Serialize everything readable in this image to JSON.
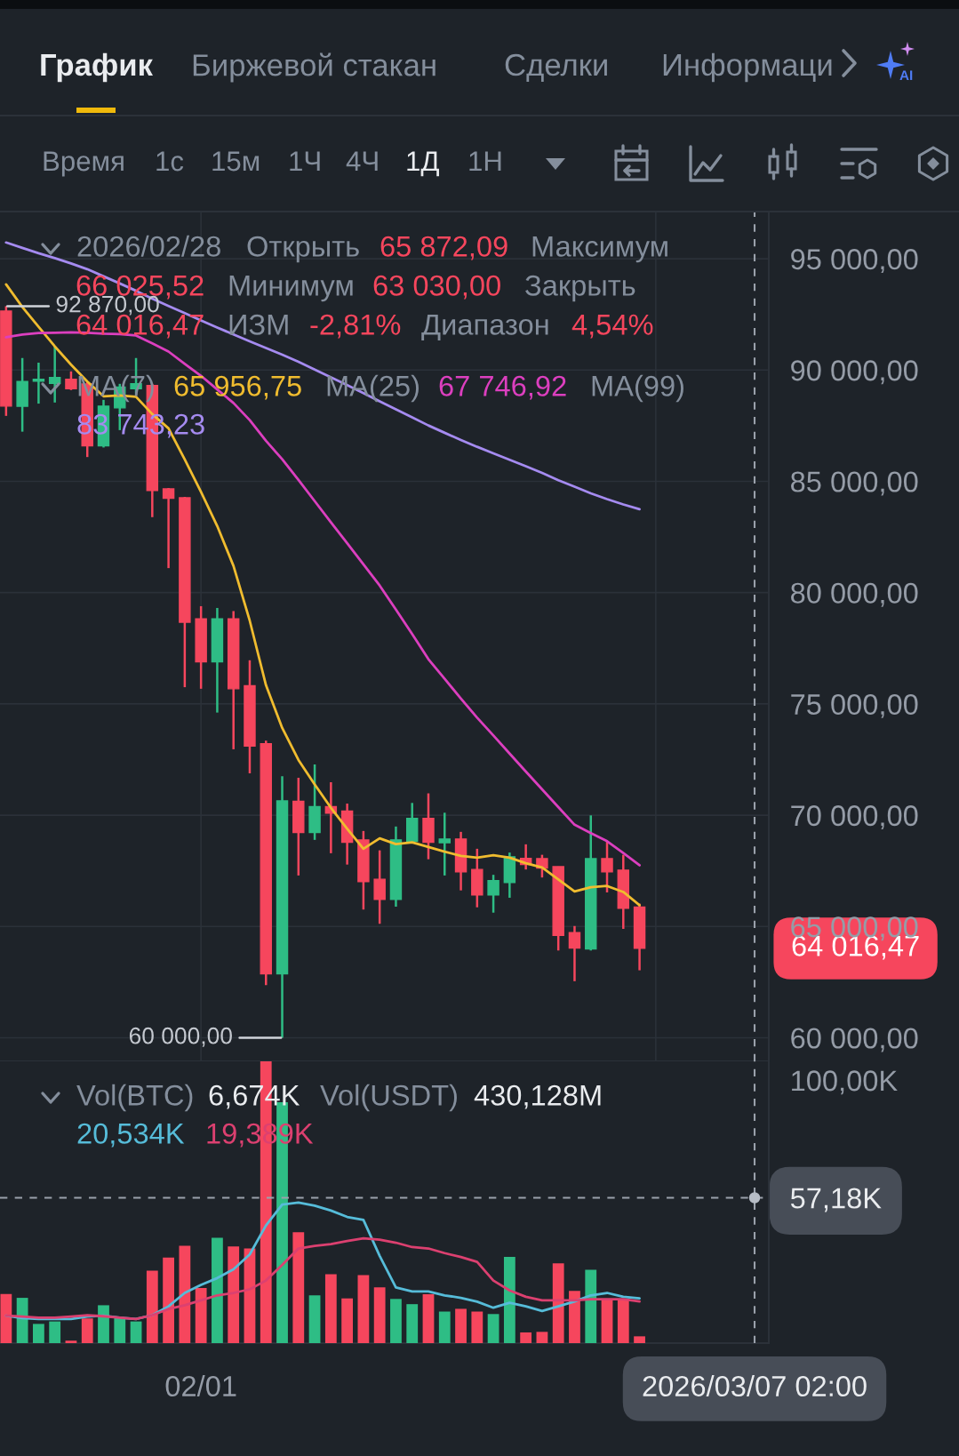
{
  "chart_data": [
    {
      "type": "candlestick",
      "x": [
        "2026-01-20",
        "2026-01-21",
        "2026-01-22",
        "2026-01-23",
        "2026-01-24",
        "2026-01-25",
        "2026-01-26",
        "2026-01-27",
        "2026-01-28",
        "2026-01-29",
        "2026-01-30",
        "2026-01-31",
        "2026-02-01",
        "2026-02-02",
        "2026-02-03",
        "2026-02-04",
        "2026-02-05",
        "2026-02-06",
        "2026-02-07",
        "2026-02-08",
        "2026-02-09",
        "2026-02-10",
        "2026-02-11",
        "2026-02-12",
        "2026-02-13",
        "2026-02-14",
        "2026-02-15",
        "2026-02-16",
        "2026-02-17",
        "2026-02-18",
        "2026-02-19",
        "2026-02-20",
        "2026-02-21",
        "2026-02-22",
        "2026-02-23",
        "2026-02-24",
        "2026-02-25",
        "2026-02-26",
        "2026-02-27",
        "2026-02-28"
      ],
      "ohlc": [
        [
          92650,
          92870,
          87940,
          88380
        ],
        [
          88370,
          90540,
          87230,
          89480
        ],
        [
          89500,
          90330,
          88490,
          89580
        ],
        [
          89400,
          91080,
          88540,
          89660
        ],
        [
          89580,
          89940,
          89100,
          89160
        ],
        [
          89370,
          89460,
          86090,
          86590
        ],
        [
          86590,
          88660,
          86520,
          88380
        ],
        [
          88300,
          89380,
          87300,
          89230
        ],
        [
          89160,
          90540,
          88940,
          89380
        ],
        [
          89300,
          89380,
          83390,
          84590
        ],
        [
          84660,
          84700,
          81100,
          84240
        ],
        [
          84260,
          84300,
          75750,
          78670
        ],
        [
          78820,
          79390,
          75680,
          76890
        ],
        [
          76890,
          79310,
          74610,
          78820
        ],
        [
          78820,
          79170,
          72960,
          75680
        ],
        [
          75820,
          76960,
          71880,
          73110
        ],
        [
          73210,
          73350,
          62360,
          62870
        ],
        [
          62870,
          71750,
          60000,
          70640
        ],
        [
          70620,
          71680,
          67290,
          69220
        ],
        [
          69220,
          72280,
          68890,
          70380
        ],
        [
          70380,
          71480,
          68290,
          70090
        ],
        [
          70180,
          70520,
          67780,
          68780
        ],
        [
          68890,
          69290,
          65760,
          67020
        ],
        [
          67120,
          68420,
          65120,
          66220
        ],
        [
          66220,
          69490,
          65890,
          68890
        ],
        [
          68820,
          70550,
          68820,
          69860
        ],
        [
          69860,
          70980,
          68020,
          68780
        ],
        [
          68760,
          70110,
          67290,
          68930
        ],
        [
          68930,
          69250,
          66620,
          67450
        ],
        [
          67560,
          68490,
          65860,
          66420
        ],
        [
          66420,
          67320,
          65620,
          67060
        ],
        [
          66980,
          68320,
          66290,
          68130
        ],
        [
          68060,
          68690,
          67560,
          67780
        ],
        [
          68050,
          68220,
          67200,
          67620
        ],
        [
          67690,
          67690,
          63920,
          64600
        ],
        [
          64720,
          65020,
          62540,
          64030
        ],
        [
          63990,
          69990,
          63920,
          68050
        ],
        [
          68050,
          68820,
          66530,
          67450
        ],
        [
          67530,
          68220,
          64890,
          65820
        ],
        [
          65872.09,
          66025.52,
          63030.0,
          64016.47
        ]
      ],
      "colors": [
        "#f6465d",
        "#2ebd85",
        "#2ebd85",
        "#2ebd85",
        "#f6465d",
        "#f6465d",
        "#2ebd85",
        "#2ebd85",
        "#2ebd85",
        "#f6465d",
        "#f6465d",
        "#f6465d",
        "#f6465d",
        "#2ebd85",
        "#f6465d",
        "#f6465d",
        "#f6465d",
        "#2ebd85",
        "#f6465d",
        "#2ebd85",
        "#f6465d",
        "#f6465d",
        "#f6465d",
        "#f6465d",
        "#2ebd85",
        "#2ebd85",
        "#f6465d",
        "#2ebd85",
        "#f6465d",
        "#f6465d",
        "#2ebd85",
        "#2ebd85",
        "#f6465d",
        "#f6465d",
        "#f6465d",
        "#f6465d",
        "#2ebd85",
        "#f6465d",
        "#f6465d",
        "#f6465d"
      ],
      "series": [
        {
          "type": "line",
          "color": "#f0bc2f",
          "values": [
            93850,
            92830,
            91940,
            91060,
            90240,
            89480,
            88820,
            88860,
            88800,
            88020,
            87380,
            85980,
            84520,
            82990,
            81200,
            78740,
            75840,
            73920,
            72480,
            71380,
            70330,
            69390,
            68490,
            68960,
            68700,
            68780,
            68570,
            68360,
            68170,
            68090,
            68200,
            68090,
            67840,
            67650,
            67110,
            66570,
            66760,
            66820,
            66550,
            65956.75
          ]
        },
        {
          "type": "line",
          "color": "#dc3fbf",
          "values": [
            91470,
            91590,
            91660,
            91670,
            91690,
            91670,
            91630,
            91610,
            91550,
            91200,
            90830,
            90280,
            89740,
            89130,
            88520,
            87750,
            86820,
            85990,
            85060,
            84110,
            83160,
            82220,
            81270,
            80320,
            79240,
            78140,
            77010,
            76130,
            75240,
            74380,
            73580,
            72770,
            71960,
            71160,
            70360,
            69570,
            69190,
            68830,
            68300,
            67746.92
          ]
        },
        {
          "type": "line",
          "color": "#a58bf0",
          "values": [
            95730,
            95490,
            95250,
            95030,
            94790,
            94530,
            94210,
            93890,
            93560,
            93210,
            92880,
            92560,
            92230,
            91910,
            91600,
            91290,
            90990,
            90690,
            90370,
            90020,
            89670,
            89320,
            88960,
            88590,
            88230,
            87870,
            87510,
            87180,
            86860,
            86550,
            86260,
            85970,
            85680,
            85380,
            85050,
            84760,
            84460,
            84200,
            83960,
            83743.23
          ]
        }
      ],
      "xlim": [
        "2026-01-19T15:00",
        "2026-03-07T23:00"
      ],
      "xticks": [
        {
          "value": "2026-02-01",
          "label": null
        },
        {
          "value": "2026-03-01",
          "label": null
        }
      ],
      "ylim": [
        58940,
        97120
      ],
      "yticks": [
        {
          "value": 60000,
          "label": "60 000,00"
        },
        {
          "value": 65000,
          "label": "65 000,00"
        },
        {
          "value": 70000,
          "label": "70 000,00"
        },
        {
          "value": 75000,
          "label": "75 000,00"
        },
        {
          "value": 80000,
          "label": "80 000,00"
        },
        {
          "value": 85000,
          "label": "85 000,00"
        },
        {
          "value": 90000,
          "label": "90 000,00"
        },
        {
          "value": 95000,
          "label": "95 000,00"
        }
      ],
      "tick_labels": "y",
      "grid": true,
      "ref_lines": [
        {
          "axis": "x",
          "value": "2026-03-07T02:00",
          "line_style": "dashed",
          "color": "#9aa1ab"
        }
      ],
      "annotations": [
        "График",
        "Биржевой стакан",
        "Сделки",
        "Информаци",
        "AI",
        "Время",
        "1с",
        "15м",
        "1Ч",
        "4Ч",
        "1Д",
        "1Н",
        "2026/02/28",
        "Открыть",
        "65 872,09",
        "Максимум",
        "66 025,52",
        "Минимум",
        "63 030,00",
        "Закрыть",
        "64 016,47",
        "ИЗМ",
        "-2,81%",
        "Диапазон",
        "4,54%",
        "MA(7)",
        "65 956,75",
        "MA(25)",
        "67 746,92",
        "MA(99)",
        "83 743,23",
        {
          "text": "92 870,00",
          "x": "2026-01-20",
          "y": 92870
        },
        {
          "text": "60 000,00",
          "x": "2026-02-06",
          "y": 60000
        },
        "64 016,47"
      ]
    },
    {
      "type": "bar",
      "x": [
        "2026-01-20",
        "2026-01-21",
        "2026-01-22",
        "2026-01-23",
        "2026-01-24",
        "2026-01-25",
        "2026-01-26",
        "2026-01-27",
        "2026-01-28",
        "2026-01-29",
        "2026-01-30",
        "2026-01-31",
        "2026-02-01",
        "2026-02-02",
        "2026-02-03",
        "2026-02-04",
        "2026-02-05",
        "2026-02-06",
        "2026-02-07",
        "2026-02-08",
        "2026-02-09",
        "2026-02-10",
        "2026-02-11",
        "2026-02-12",
        "2026-02-13",
        "2026-02-14",
        "2026-02-15",
        "2026-02-16",
        "2026-02-17",
        "2026-02-18",
        "2026-02-19",
        "2026-02-20",
        "2026-02-21",
        "2026-02-22",
        "2026-02-23",
        "2026-02-24",
        "2026-02-25",
        "2026-02-26",
        "2026-02-27",
        "2026-02-28"
      ],
      "values": [
        22.1,
        20.7,
        11.2,
        12.1,
        5.1,
        13.2,
        18.0,
        13.5,
        12.1,
        30.6,
        35.4,
        39.7,
        24.3,
        42.6,
        39.4,
        38.7,
        106.9,
        92.0,
        44.6,
        21.6,
        29.3,
        20.5,
        29.0,
        24.5,
        20.3,
        18.4,
        22.0,
        15.7,
        16.7,
        15.7,
        14.8,
        35.6,
        8.1,
        8.3,
        33.3,
        23.2,
        30.9,
        19.8,
        20.3,
        6.674
      ],
      "colors": [
        "#f6465d",
        "#2ebd85",
        "#2ebd85",
        "#2ebd85",
        "#f6465d",
        "#f6465d",
        "#2ebd85",
        "#2ebd85",
        "#2ebd85",
        "#f6465d",
        "#f6465d",
        "#f6465d",
        "#f6465d",
        "#2ebd85",
        "#f6465d",
        "#f6465d",
        "#f6465d",
        "#2ebd85",
        "#f6465d",
        "#2ebd85",
        "#f6465d",
        "#f6465d",
        "#f6465d",
        "#f6465d",
        "#2ebd85",
        "#2ebd85",
        "#f6465d",
        "#2ebd85",
        "#f6465d",
        "#f6465d",
        "#2ebd85",
        "#2ebd85",
        "#f6465d",
        "#f6465d",
        "#f6465d",
        "#f6465d",
        "#2ebd85",
        "#f6465d",
        "#f6465d",
        "#f6465d"
      ],
      "series": [
        {
          "type": "line",
          "color": "#56bcd9",
          "values": [
            14.2,
            13.3,
            13.0,
            13.0,
            13.0,
            13.9,
            14.2,
            13.5,
            13.0,
            14.4,
            17.6,
            22.5,
            25.4,
            27.9,
            31.1,
            36.5,
            47.1,
            54.7,
            55.4,
            54.3,
            52.5,
            50.2,
            49.1,
            36.0,
            24.5,
            23.0,
            23.0,
            21.6,
            20.7,
            19.3,
            17.1,
            18.9,
            17.6,
            15.9,
            17.6,
            19.4,
            21.6,
            22.5,
            21.1,
            20.534
          ]
        },
        {
          "type": "line",
          "color": "#dc4070",
          "values": [
            14.2,
            13.9,
            13.5,
            13.5,
            13.9,
            14.4,
            14.0,
            13.5,
            13.0,
            14.4,
            16.6,
            18.0,
            19.8,
            21.6,
            22.5,
            23.8,
            27.0,
            32.7,
            38.7,
            39.6,
            40.3,
            41.4,
            42.4,
            41.9,
            40.8,
            39.2,
            38.7,
            37.0,
            35.6,
            33.8,
            27.0,
            23.4,
            21.1,
            19.8,
            19.8,
            19.8,
            20.2,
            20.2,
            20.2,
            19.389
          ]
        }
      ],
      "xlim": [
        "2026-01-19T15:00",
        "2026-03-07T23:00"
      ],
      "xticks": [
        {
          "value": "2026-02-01",
          "label": "02/01"
        },
        {
          "value": "2026-03-07T02:00",
          "label": "2026/03/07 02:00"
        }
      ],
      "ylim": [
        4.2,
        106.9
      ],
      "yticks": [
        {
          "value": 57.18,
          "label": "57,18K"
        },
        {
          "value": 100,
          "label": "100,00K"
        }
      ],
      "ref_lines": [
        {
          "axis": "x",
          "value": "2026-03-07T02:00",
          "line_style": "dashed",
          "color": "#9aa1ab"
        },
        {
          "axis": "y",
          "value": 57.18,
          "line_style": "dashed",
          "color": "#9aa1ab"
        }
      ],
      "annotations": [
        "Vol(BTC)",
        "6,674K",
        "Vol(USDT)",
        "430,128M",
        "20,534K",
        "19,389K"
      ]
    }
  ]
}
